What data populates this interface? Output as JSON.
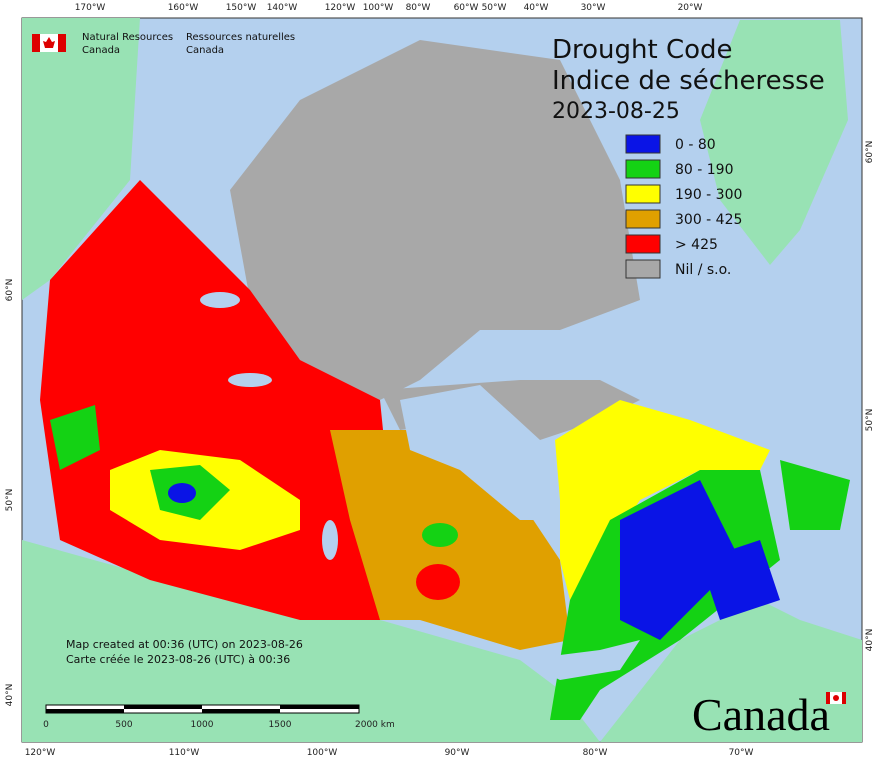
{
  "header": {
    "org_en_1": "Natural Resources",
    "org_en_2": "Canada",
    "org_fr_1": "Ressources naturelles",
    "org_fr_2": "Canada"
  },
  "title": {
    "en": "Drought Code",
    "fr": "Indice de sécheresse",
    "date": "2023-08-25"
  },
  "legend": {
    "items": [
      {
        "label": "0 - 80",
        "color": "#0a14e6"
      },
      {
        "label": "80 - 190",
        "color": "#14d214"
      },
      {
        "label": "190 - 300",
        "color": "#ffff00"
      },
      {
        "label": "300 - 425",
        "color": "#e0a000"
      },
      {
        "label": "> 425",
        "color": "#ff0000"
      },
      {
        "label": "Nil / s.o.",
        "color": "#a8a8a8"
      }
    ]
  },
  "graticule": {
    "top": [
      "170°W",
      "160°W",
      "150°W",
      "140°W",
      "120°W",
      "100°W",
      "80°W",
      "60°W",
      "50°W",
      "40°W",
      "30°W",
      "20°W"
    ],
    "bottom": [
      "120°W",
      "110°W",
      "100°W",
      "90°W",
      "80°W",
      "70°W"
    ],
    "left": [
      "60°N",
      "50°N",
      "40°N"
    ],
    "right": [
      "60°N",
      "50°N",
      "40°N"
    ]
  },
  "notes": {
    "en": "Map created at 00:36 (UTC) on 2023-08-26",
    "fr": "Carte créée le 2023-08-26 (UTC) à 00:36"
  },
  "scale_bar": {
    "labels": [
      "0",
      "500",
      "1000",
      "1500",
      "2000 km"
    ]
  },
  "wordmark": "Canada"
}
